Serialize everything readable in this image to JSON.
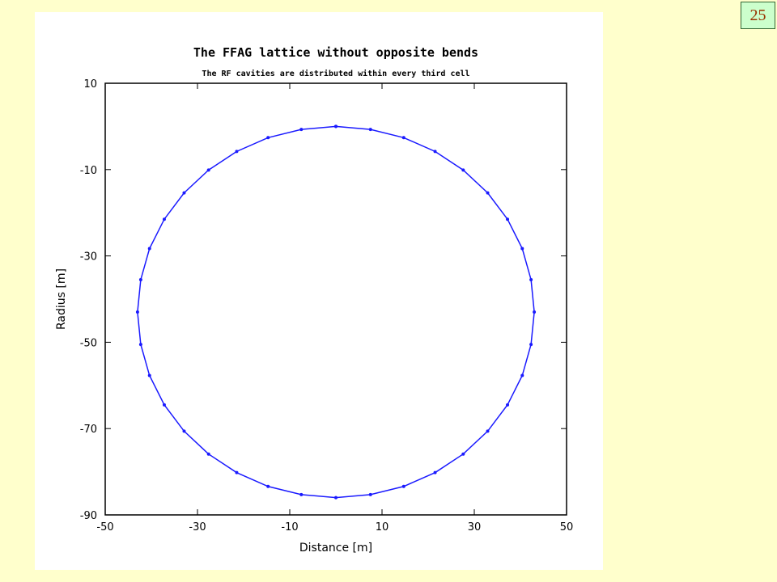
{
  "page_number": "25",
  "chart_data": {
    "type": "line",
    "title": "The FFAG lattice without opposite bends",
    "subtitle": "The RF cavities are distributed within every third cell",
    "x_label": "Distance [m]",
    "y_label": "Radius [m]",
    "color": "#1a1aff",
    "markers": true,
    "x": [
      0,
      7.5,
      14.7,
      21.5,
      27.6,
      32.9,
      37.2,
      40.4,
      42.3,
      43,
      42.3,
      40.4,
      37.2,
      32.9,
      27.6,
      21.5,
      14.7,
      7.5,
      0,
      -7.5,
      -14.7,
      -21.5,
      -27.6,
      -32.9,
      -37.2,
      -40.4,
      -42.3,
      -43,
      -42.3,
      -40.4,
      -37.2,
      -32.9,
      -27.6,
      -21.5,
      -14.7,
      -7.5,
      0
    ],
    "values": [
      0,
      -0.7,
      -2.6,
      -5.8,
      -10.1,
      -15.4,
      -21.5,
      -28.3,
      -35.5,
      -43,
      -50.5,
      -57.7,
      -64.5,
      -70.6,
      -75.9,
      -80.2,
      -83.4,
      -85.3,
      -86,
      -85.3,
      -83.4,
      -80.2,
      -75.9,
      -70.6,
      -64.5,
      -57.7,
      -50.5,
      -43,
      -35.5,
      -28.3,
      -21.5,
      -15.4,
      -10.1,
      -5.8,
      -2.6,
      -0.7,
      0
    ],
    "xlim": [
      -50,
      50
    ],
    "xticks": [
      -50,
      -30,
      -10,
      10,
      30,
      50
    ],
    "ylim": [
      -90,
      10
    ],
    "yticks": [
      10,
      -10,
      -30,
      -50,
      -70,
      -90
    ]
  }
}
